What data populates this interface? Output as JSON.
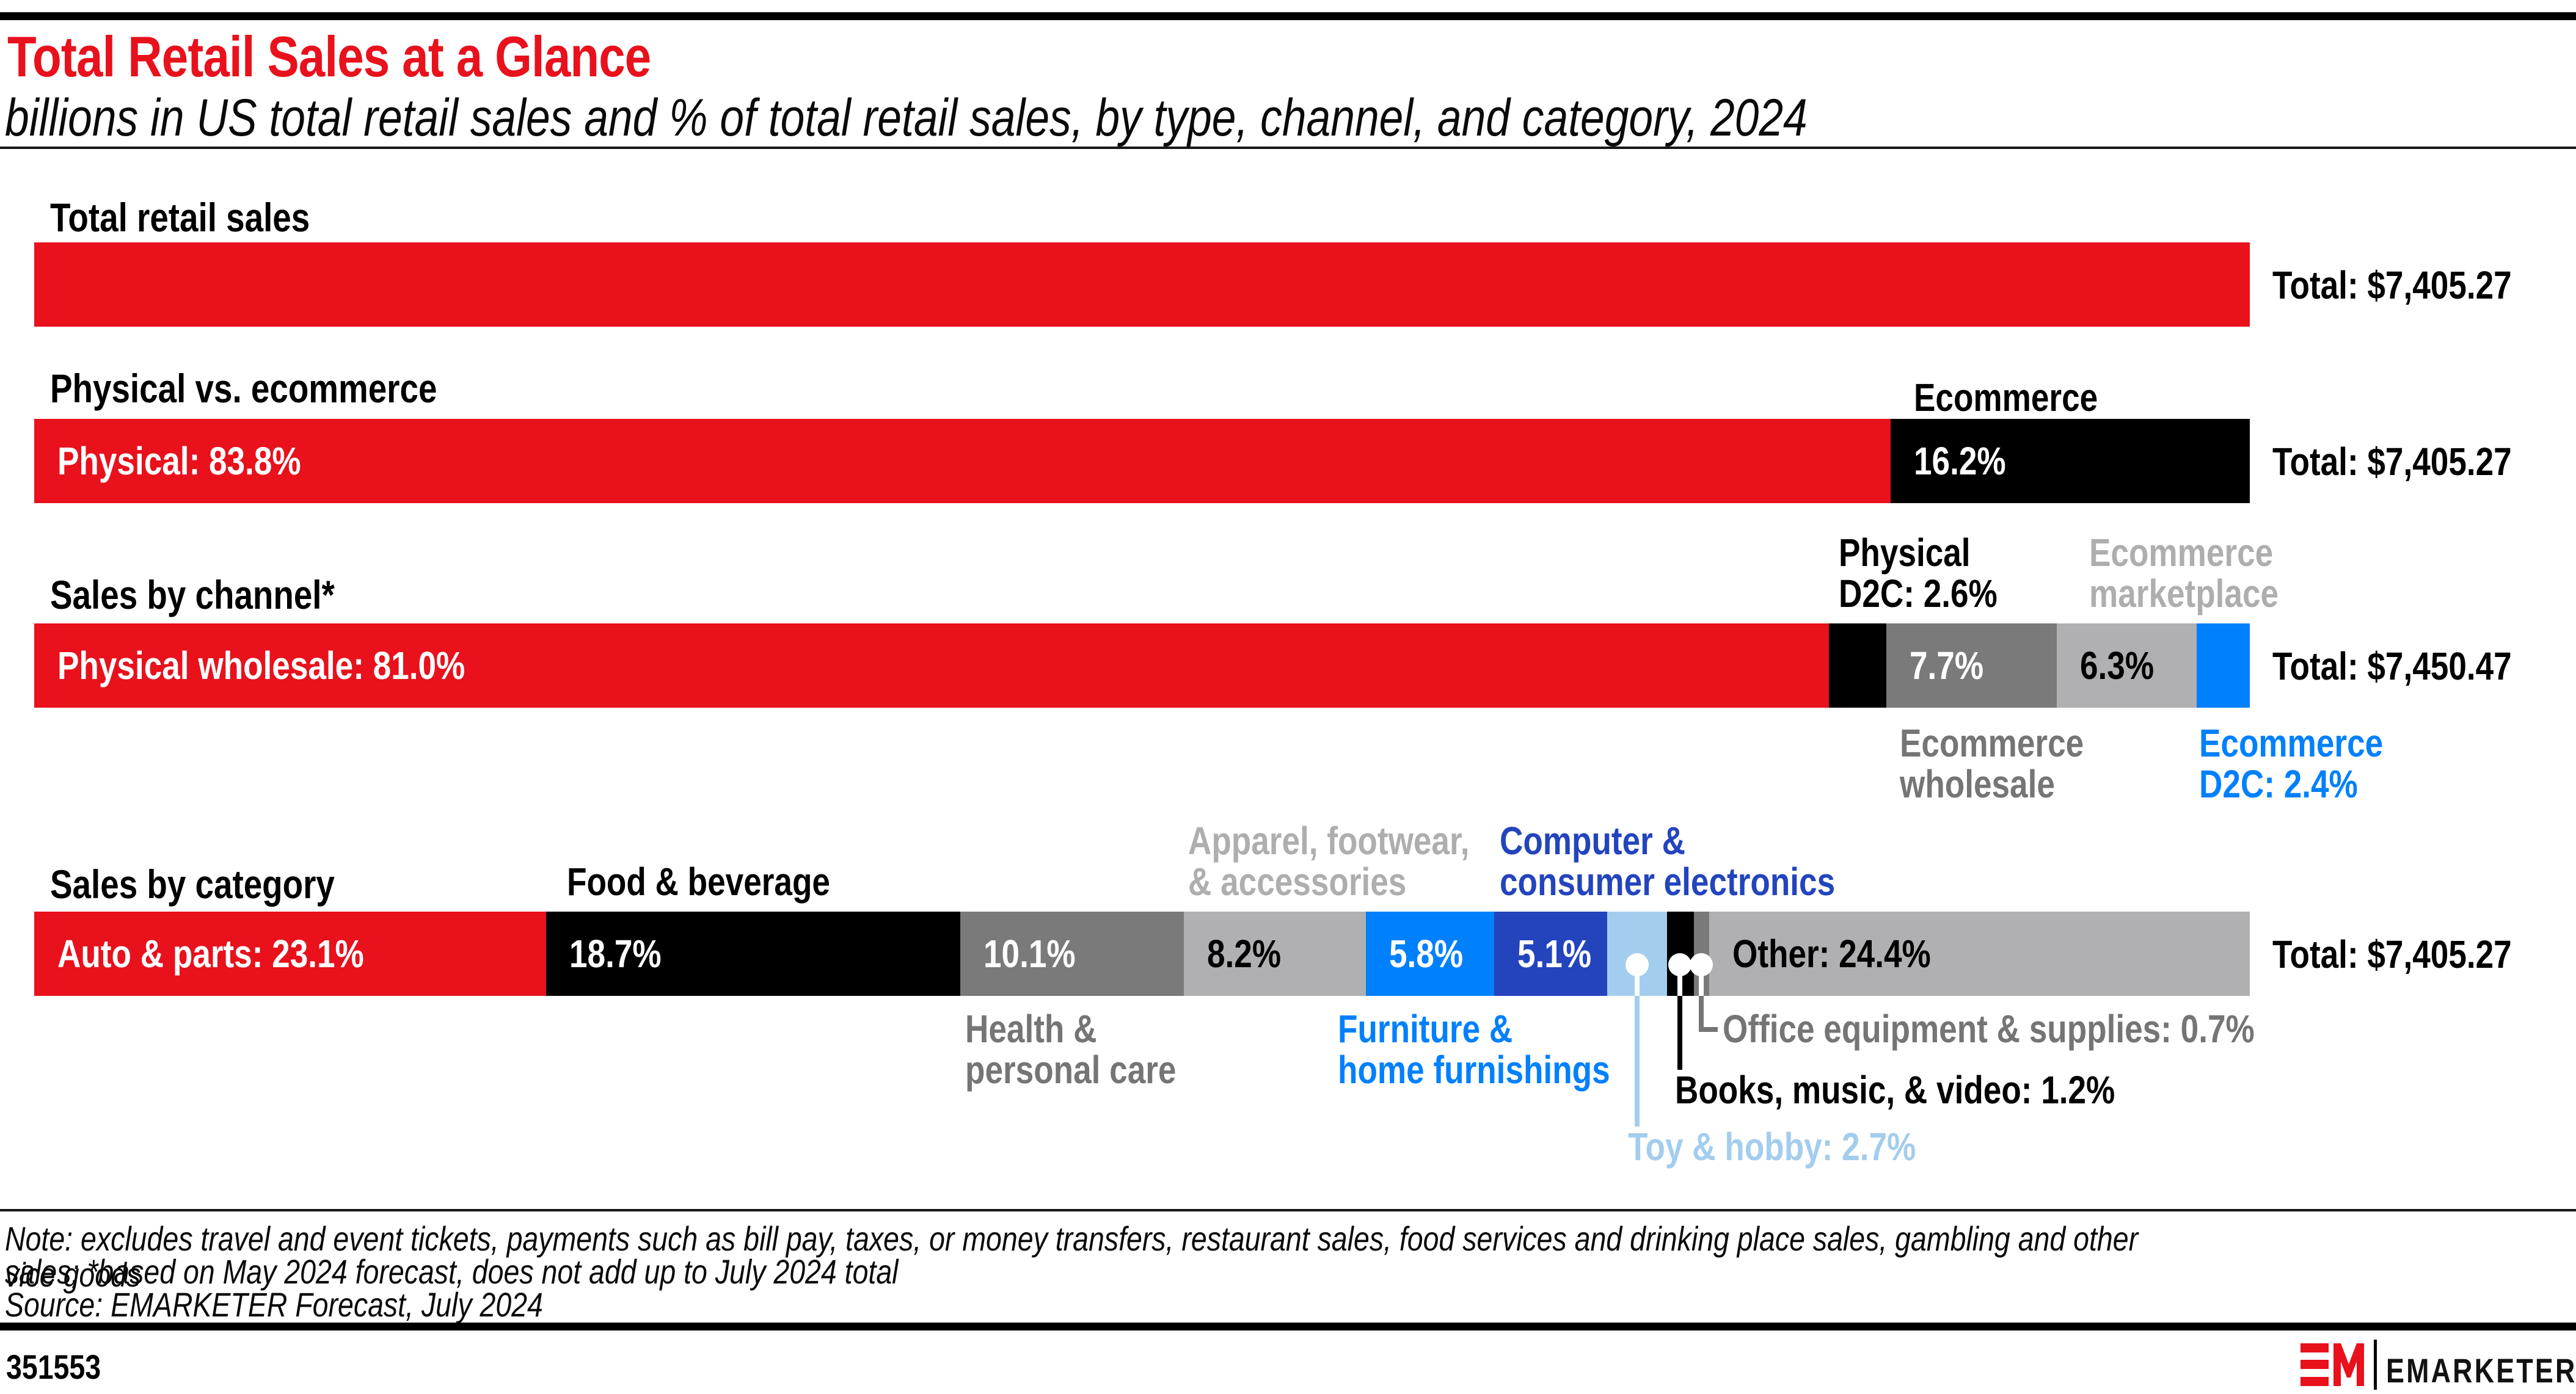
{
  "header": {
    "title": "Total Retail Sales at a Glance",
    "subtitle": "billions in US total retail sales and % of total retail sales, by type, channel, and category, 2024"
  },
  "colors": {
    "red": "#e8111c",
    "black": "#000000",
    "dark_gray": "#7a7a7a",
    "light_gray": "#b0b0b2",
    "bright_blue": "#0080fd",
    "dark_blue": "#2344bd",
    "light_blue": "#a3cdee",
    "label_gray": "#757575",
    "label_light_gray": "#aeaeae",
    "white": "#ffffff"
  },
  "chart_data": [
    {
      "type": "bar",
      "title": "Total retail sales",
      "total_label": "Total: $7,405.27",
      "segments": [
        {
          "label": "Total retail sales",
          "pct": 100,
          "color": "red"
        }
      ]
    },
    {
      "type": "bar",
      "title": "Physical vs. ecommerce",
      "total_label": "Total: $7,405.27",
      "segments": [
        {
          "label": "Physical",
          "pct": 83.8,
          "color": "red",
          "inbar_text": "Physical: 83.8%",
          "inbar_text_color": "white"
        },
        {
          "label": "Ecommerce",
          "pct": 16.2,
          "color": "black",
          "inbar_text": "16.2%",
          "inbar_text_color": "white"
        }
      ]
    },
    {
      "type": "bar",
      "title": "Sales by channel*",
      "total_label": "Total: $7,450.47",
      "segments": [
        {
          "label": "Physical wholesale",
          "pct": 81.0,
          "color": "red",
          "inbar_text": "Physical wholesale: 81.0%",
          "inbar_text_color": "white"
        },
        {
          "label": "Physical D2C",
          "pct": 2.6,
          "color": "black"
        },
        {
          "label": "Ecommerce wholesale",
          "pct": 7.7,
          "color": "dark_gray",
          "inbar_text": "7.7%",
          "inbar_text_color": "white"
        },
        {
          "label": "Ecommerce marketplace",
          "pct": 6.3,
          "color": "light_gray",
          "inbar_text": "6.3%",
          "inbar_text_color": "black"
        },
        {
          "label": "Ecommerce D2C",
          "pct": 2.4,
          "color": "bright_blue"
        }
      ]
    },
    {
      "type": "bar",
      "title": "Sales by category",
      "total_label": "Total: $7,405.27",
      "segments": [
        {
          "label": "Auto & parts",
          "pct": 23.1,
          "color": "red",
          "inbar_text": "Auto & parts: 23.1%",
          "inbar_text_color": "white"
        },
        {
          "label": "Food & beverage",
          "pct": 18.7,
          "color": "black",
          "inbar_text": "18.7%",
          "inbar_text_color": "white"
        },
        {
          "label": "Health & personal care",
          "pct": 10.1,
          "color": "dark_gray",
          "inbar_text": "10.1%",
          "inbar_text_color": "white"
        },
        {
          "label": "Apparel, footwear, & accessories",
          "pct": 8.2,
          "color": "light_gray",
          "inbar_text": "8.2%",
          "inbar_text_color": "black"
        },
        {
          "label": "Furniture & home furnishings",
          "pct": 5.8,
          "color": "bright_blue",
          "inbar_text": "5.8%",
          "inbar_text_color": "white"
        },
        {
          "label": "Computer & consumer electronics",
          "pct": 5.1,
          "color": "dark_blue",
          "inbar_text": "5.1%",
          "inbar_text_color": "white"
        },
        {
          "label": "Toy & hobby",
          "pct": 2.7,
          "color": "light_blue"
        },
        {
          "label": "Books, music, & video",
          "pct": 1.2,
          "color": "black"
        },
        {
          "label": "Office equipment & supplies",
          "pct": 0.7,
          "color": "dark_gray"
        },
        {
          "label": "Other",
          "pct": 24.4,
          "color": "light_gray",
          "inbar_text": "Other: 24.4%",
          "inbar_text_color": "black"
        }
      ]
    }
  ],
  "labels": {
    "b2_ecommerce": "Ecommerce",
    "b3_physical_d2c": "Physical\nD2C: 2.6%",
    "b3_marketplace": "Ecommerce\nmarketplace",
    "b3_wholesale": "Ecommerce\nwholesale",
    "b3_ecom_d2c": "Ecommerce\nD2C: 2.4%",
    "b4_food": "Food & beverage",
    "b4_apparel": "Apparel, footwear,\n& accessories",
    "b4_computer": "Computer &\nconsumer electronics",
    "b4_health": "Health &\npersonal care",
    "b4_furniture": "Furniture &\nhome furnishings",
    "b4_office": "Office equipment & supplies: 0.7%",
    "b4_books": "Books, music, & video: 1.2%",
    "b4_toy": "Toy & hobby: 2.7%"
  },
  "note": {
    "line1": "Note: excludes travel and event tickets, payments such as bill pay, taxes, or money transfers, restaurant sales, food services and drinking place sales, gambling and other vice goods",
    "line2": "sales; *based on May 2024 forecast, does not add up to July 2024 total",
    "source": "Source: EMARKETER Forecast, July 2024"
  },
  "footer": {
    "chart_id": "351553",
    "brand": "EMARKETER",
    "brand_mark": "EM"
  }
}
